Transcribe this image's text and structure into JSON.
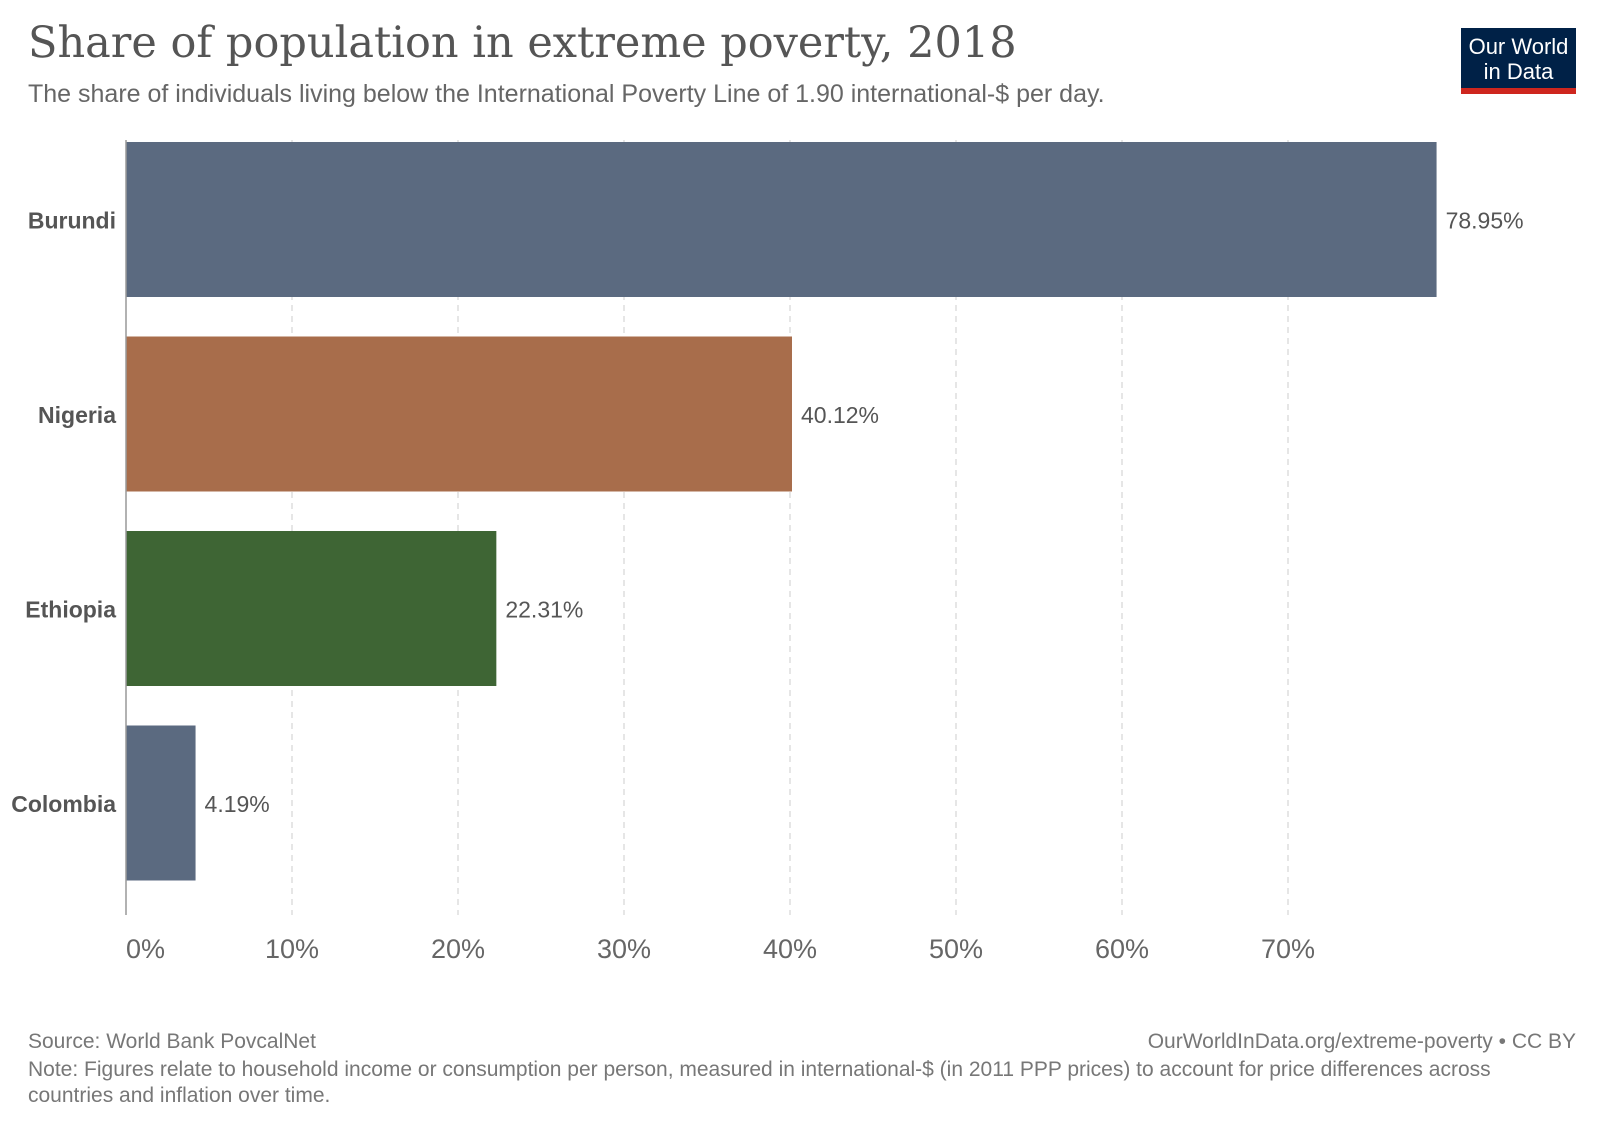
{
  "header": {
    "title": "Share of population in extreme poverty, 2018",
    "subtitle": "The share of individuals living below the International Poverty Line of 1.90 international-$ per day."
  },
  "logo": {
    "line1": "Our World",
    "line2": "in Data"
  },
  "footer": {
    "source": "Source: World Bank PovcalNet",
    "url": "OurWorldInData.org/extreme-poverty • CC BY",
    "note": "Note: Figures relate to household income or consumption per person, measured in international-$ (in 2011 PPP prices) to account for price differences across countries and inflation over time."
  },
  "chart_data": {
    "type": "bar",
    "orientation": "horizontal",
    "title": "Share of population in extreme poverty, 2018",
    "subtitle": "The share of individuals living below the International Poverty Line of 1.90 international-$ per day.",
    "categories": [
      "Burundi",
      "Nigeria",
      "Ethiopia",
      "Colombia"
    ],
    "values": [
      78.95,
      40.12,
      22.31,
      4.19
    ],
    "value_labels": [
      "78.95%",
      "40.12%",
      "22.31%",
      "4.19%"
    ],
    "colors": [
      "#5b6a80",
      "#a86d4b",
      "#3e6534",
      "#5b6a80"
    ],
    "x_ticks": [
      0,
      10,
      20,
      30,
      40,
      50,
      60,
      70
    ],
    "x_tick_labels": [
      "0%",
      "10%",
      "20%",
      "30%",
      "40%",
      "50%",
      "60%",
      "70%"
    ],
    "xlim": [
      0,
      80
    ],
    "grid": true,
    "legend": "none"
  }
}
